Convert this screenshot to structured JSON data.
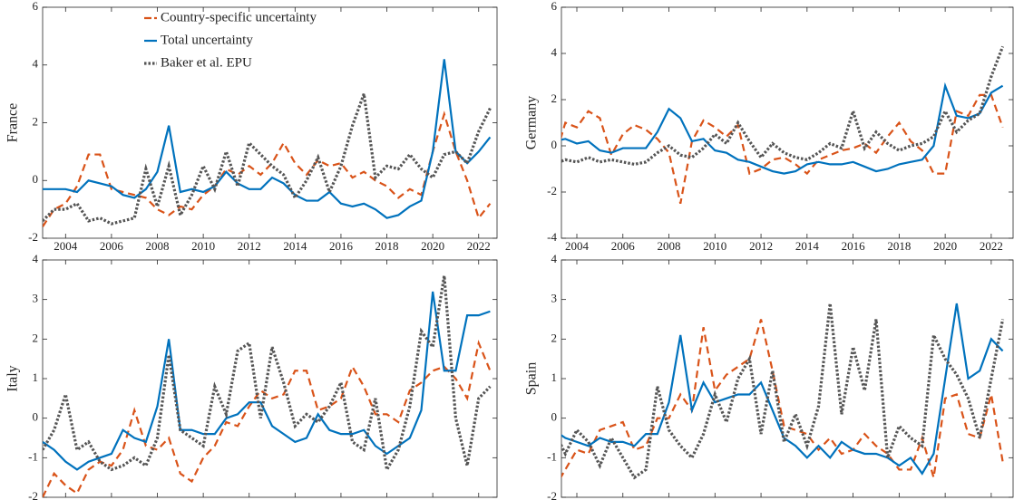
{
  "chart_data": [
    {
      "type": "line",
      "ylabel": "France",
      "legend": "top-left",
      "x": [
        2003,
        2003.5,
        2004,
        2004.5,
        2005,
        2005.5,
        2006,
        2006.5,
        2007,
        2007.5,
        2008,
        2008.5,
        2009,
        2009.5,
        2010,
        2010.5,
        2011,
        2011.5,
        2012,
        2012.5,
        2013,
        2013.5,
        2014,
        2014.5,
        2015,
        2015.5,
        2016,
        2016.5,
        2017,
        2017.5,
        2018,
        2018.5,
        2019,
        2019.5,
        2020,
        2020.5,
        2021,
        2021.5,
        2022,
        2022.5
      ],
      "xlim": [
        2003.0,
        2022.8
      ],
      "ylim": [
        -2,
        6
      ],
      "xticks": [
        2004,
        2006,
        2008,
        2010,
        2012,
        2014,
        2016,
        2018,
        2020,
        2022
      ],
      "yticks": [
        -2,
        0,
        2,
        4,
        6
      ],
      "series": [
        {
          "name": "Country-specific uncertainty",
          "color": "#d95319",
          "style": "dashed",
          "values": [
            -1.6,
            -1.0,
            -0.8,
            -0.2,
            0.9,
            0.9,
            -0.3,
            -0.4,
            -0.5,
            -0.6,
            -1.0,
            -1.2,
            -0.9,
            -1.0,
            -0.5,
            -0.2,
            0.4,
            0.2,
            0.5,
            0.2,
            0.6,
            1.3,
            0.6,
            0.2,
            0.7,
            0.5,
            0.6,
            0.1,
            0.3,
            0.0,
            -0.2,
            -0.6,
            -0.3,
            -0.5,
            1.0,
            2.3,
            1.0,
            0.0,
            -1.3,
            -0.8
          ]
        },
        {
          "name": "Total uncertainty",
          "color": "#0072bd",
          "style": "solid",
          "values": [
            -0.3,
            -0.3,
            -0.3,
            -0.4,
            0.0,
            -0.1,
            -0.2,
            -0.5,
            -0.6,
            -0.3,
            0.3,
            1.9,
            -0.4,
            -0.3,
            -0.4,
            -0.2,
            0.3,
            -0.1,
            -0.3,
            -0.3,
            0.1,
            -0.1,
            -0.5,
            -0.7,
            -0.7,
            -0.4,
            -0.8,
            -0.9,
            -0.8,
            -1.0,
            -1.3,
            -1.2,
            -0.9,
            -0.7,
            1.0,
            4.2,
            1.0,
            0.6,
            1.0,
            1.5
          ]
        },
        {
          "name": "Baker et al. EPU",
          "color": "#555555",
          "style": "dotted",
          "values": [
            -1.4,
            -1.0,
            -1.0,
            -0.8,
            -1.4,
            -1.3,
            -1.5,
            -1.4,
            -1.3,
            0.4,
            -0.9,
            0.5,
            -1.2,
            -0.5,
            0.5,
            -0.3,
            1.0,
            -0.2,
            1.3,
            0.9,
            0.5,
            0.2,
            -0.6,
            0.0,
            0.8,
            -0.4,
            0.5,
            1.9,
            3.0,
            0.1,
            0.5,
            0.4,
            0.9,
            0.4,
            0.1,
            0.9,
            1.0,
            0.6,
            1.7,
            2.5
          ]
        }
      ]
    },
    {
      "type": "line",
      "ylabel": "Germany",
      "x": [
        2003,
        2003.5,
        2004,
        2004.5,
        2005,
        2005.5,
        2006,
        2006.5,
        2007,
        2007.5,
        2008,
        2008.5,
        2009,
        2009.5,
        2010,
        2010.5,
        2011,
        2011.5,
        2012,
        2012.5,
        2013,
        2013.5,
        2014,
        2014.5,
        2015,
        2015.5,
        2016,
        2016.5,
        2017,
        2017.5,
        2018,
        2018.5,
        2019,
        2019.5,
        2020,
        2020.5,
        2021,
        2021.5,
        2022,
        2022.5
      ],
      "xlim": [
        2003.33,
        2022.95
      ],
      "ylim": [
        -4,
        6
      ],
      "xticks": [
        2004,
        2006,
        2008,
        2010,
        2012,
        2014,
        2016,
        2018,
        2020,
        2022
      ],
      "yticks": [
        -4,
        -2,
        0,
        2,
        4,
        6
      ],
      "series": [
        {
          "color": "#d95319",
          "style": "dashed",
          "values": [
            -0.7,
            1.0,
            0.8,
            1.5,
            1.2,
            -0.4,
            0.5,
            0.9,
            0.7,
            0.3,
            -0.3,
            -2.5,
            0.2,
            1.1,
            0.8,
            0.4,
            0.9,
            -1.2,
            -1.0,
            -0.6,
            -0.5,
            -0.8,
            -1.2,
            -0.6,
            -0.4,
            -0.2,
            -0.1,
            0.1,
            -0.3,
            0.4,
            1.0,
            0.2,
            -0.2,
            -1.2,
            -1.2,
            1.5,
            1.3,
            2.2,
            2.2,
            0.8
          ]
        },
        {
          "color": "#0072bd",
          "style": "solid",
          "values": [
            0.2,
            0.3,
            0.1,
            0.2,
            -0.2,
            -0.3,
            -0.1,
            -0.1,
            -0.1,
            0.6,
            1.6,
            1.2,
            0.2,
            0.3,
            -0.2,
            -0.3,
            -0.6,
            -0.7,
            -0.9,
            -1.1,
            -1.2,
            -1.1,
            -0.8,
            -0.7,
            -0.8,
            -0.8,
            -0.7,
            -0.9,
            -1.1,
            -1.0,
            -0.8,
            -0.7,
            -0.6,
            0.0,
            2.6,
            1.3,
            1.2,
            1.4,
            2.3,
            2.6
          ]
        },
        {
          "color": "#555555",
          "style": "dotted",
          "values": [
            -0.8,
            -0.6,
            -0.7,
            -0.5,
            -0.7,
            -0.6,
            -0.7,
            -0.8,
            -0.7,
            -0.3,
            0.0,
            -0.4,
            -0.5,
            -0.1,
            0.5,
            0.1,
            1.0,
            0.2,
            -0.5,
            0.1,
            -0.3,
            -0.5,
            -0.6,
            -0.3,
            0.1,
            -0.1,
            1.5,
            -0.1,
            0.6,
            0.1,
            -0.2,
            0.0,
            0.1,
            0.4,
            1.5,
            0.6,
            1.1,
            1.4,
            3.0,
            4.3
          ]
        }
      ]
    },
    {
      "type": "line",
      "ylabel": "Italy",
      "x": [
        2003,
        2003.5,
        2004,
        2004.5,
        2005,
        2005.5,
        2006,
        2006.5,
        2007,
        2007.5,
        2008,
        2008.5,
        2009,
        2009.5,
        2010,
        2010.5,
        2011,
        2011.5,
        2012,
        2012.5,
        2013,
        2013.5,
        2014,
        2014.5,
        2015,
        2015.5,
        2016,
        2016.5,
        2017,
        2017.5,
        2018,
        2018.5,
        2019,
        2019.5,
        2020,
        2020.5,
        2021,
        2021.5,
        2022,
        2022.5
      ],
      "xlim": [
        2003.0,
        2022.8
      ],
      "ylim": [
        -2,
        4
      ],
      "xticks": [
        2004,
        2006,
        2008,
        2010,
        2012,
        2014,
        2016,
        2018,
        2020,
        2022
      ],
      "yticks": [
        -2,
        -1,
        0,
        1,
        2,
        3,
        4
      ],
      "series": [
        {
          "color": "#d95319",
          "style": "dashed",
          "values": [
            -2.0,
            -1.4,
            -1.7,
            -1.9,
            -1.3,
            -1.1,
            -1.2,
            -0.8,
            0.2,
            -0.7,
            -0.8,
            -0.5,
            -1.4,
            -1.6,
            -1.0,
            -0.7,
            -0.1,
            -0.2,
            0.3,
            0.7,
            0.5,
            0.6,
            1.2,
            1.2,
            0.2,
            0.3,
            0.5,
            1.3,
            0.8,
            0.1,
            0.1,
            -0.1,
            0.7,
            0.9,
            1.2,
            1.3,
            1.0,
            0.5,
            1.9,
            1.2
          ]
        },
        {
          "color": "#0072bd",
          "style": "solid",
          "values": [
            -0.6,
            -0.8,
            -1.1,
            -1.3,
            -1.1,
            -1.0,
            -0.9,
            -0.3,
            -0.5,
            -0.6,
            0.3,
            2.0,
            -0.3,
            -0.3,
            -0.4,
            -0.4,
            0.0,
            0.1,
            0.4,
            0.4,
            -0.2,
            -0.4,
            -0.6,
            -0.5,
            0.1,
            -0.3,
            -0.4,
            -0.4,
            -0.3,
            -0.7,
            -0.9,
            -0.7,
            -0.5,
            0.2,
            3.2,
            1.2,
            1.2,
            2.6,
            2.6,
            2.7
          ]
        },
        {
          "color": "#555555",
          "style": "dotted",
          "values": [
            -0.8,
            -0.3,
            0.6,
            -0.8,
            -0.6,
            -1.1,
            -1.3,
            -1.2,
            -1.0,
            -1.2,
            -0.5,
            1.6,
            -0.3,
            -0.5,
            -0.7,
            0.8,
            0.1,
            1.7,
            1.9,
            0.0,
            1.8,
            0.9,
            -0.2,
            0.1,
            -0.1,
            0.3,
            0.9,
            -0.6,
            -0.8,
            0.5,
            -1.3,
            -0.8,
            0.3,
            2.2,
            1.8,
            3.6,
            0.0,
            -1.2,
            0.5,
            0.8
          ]
        }
      ]
    },
    {
      "type": "line",
      "ylabel": "Spain",
      "x": [
        2003,
        2003.5,
        2004,
        2004.5,
        2005,
        2005.5,
        2006,
        2006.5,
        2007,
        2007.5,
        2008,
        2008.5,
        2009,
        2009.5,
        2010,
        2010.5,
        2011,
        2011.5,
        2012,
        2012.5,
        2013,
        2013.5,
        2014,
        2014.5,
        2015,
        2015.5,
        2016,
        2016.5,
        2017,
        2017.5,
        2018,
        2018.5,
        2019,
        2019.5,
        2020,
        2020.5,
        2021,
        2021.5,
        2022,
        2022.5
      ],
      "xlim": [
        2003.33,
        2022.95
      ],
      "ylim": [
        -2,
        4
      ],
      "xticks": [
        2004,
        2006,
        2008,
        2010,
        2012,
        2014,
        2016,
        2018,
        2020,
        2022
      ],
      "yticks": [
        -2,
        -1,
        0,
        1,
        2,
        3,
        4
      ],
      "series": [
        {
          "color": "#d95319",
          "style": "dashed",
          "values": [
            -1.8,
            -1.3,
            -0.8,
            -0.9,
            -0.3,
            -0.2,
            -0.1,
            -0.8,
            -0.7,
            0.0,
            0.0,
            0.6,
            0.2,
            2.3,
            0.7,
            1.1,
            1.3,
            1.5,
            2.5,
            1.2,
            -0.2,
            -0.3,
            -0.4,
            -0.8,
            -0.5,
            -0.9,
            -0.8,
            -0.4,
            -0.7,
            -0.9,
            -1.3,
            -1.3,
            -0.5,
            -1.5,
            0.5,
            0.6,
            -0.4,
            -0.5,
            0.6,
            -1.1
          ]
        },
        {
          "color": "#0072bd",
          "style": "solid",
          "values": [
            -0.3,
            -0.5,
            -0.6,
            -0.7,
            -0.5,
            -0.6,
            -0.6,
            -0.7,
            -0.4,
            -0.4,
            0.4,
            2.1,
            0.2,
            0.9,
            0.4,
            0.5,
            0.6,
            0.6,
            0.9,
            0.2,
            -0.5,
            -0.7,
            -1.0,
            -0.7,
            -1.0,
            -0.6,
            -0.8,
            -0.9,
            -0.9,
            -1.0,
            -1.2,
            -1.0,
            -1.4,
            -0.9,
            1.0,
            2.9,
            1.0,
            1.2,
            2.0,
            1.7
          ]
        },
        {
          "color": "#555555",
          "style": "dotted",
          "values": [
            -0.3,
            -0.9,
            -0.3,
            -0.6,
            -1.2,
            -0.5,
            -1.0,
            -1.5,
            -1.3,
            0.8,
            -0.3,
            -0.7,
            -1.0,
            -0.4,
            0.6,
            -0.1,
            1.0,
            1.5,
            -0.4,
            1.2,
            -0.6,
            0.1,
            -0.7,
            0.3,
            2.9,
            0.1,
            1.8,
            0.7,
            2.5,
            -1.0,
            -0.2,
            -0.5,
            -0.7,
            2.1,
            1.5,
            1.1,
            0.5,
            -0.5,
            1.0,
            2.5
          ]
        }
      ]
    }
  ]
}
